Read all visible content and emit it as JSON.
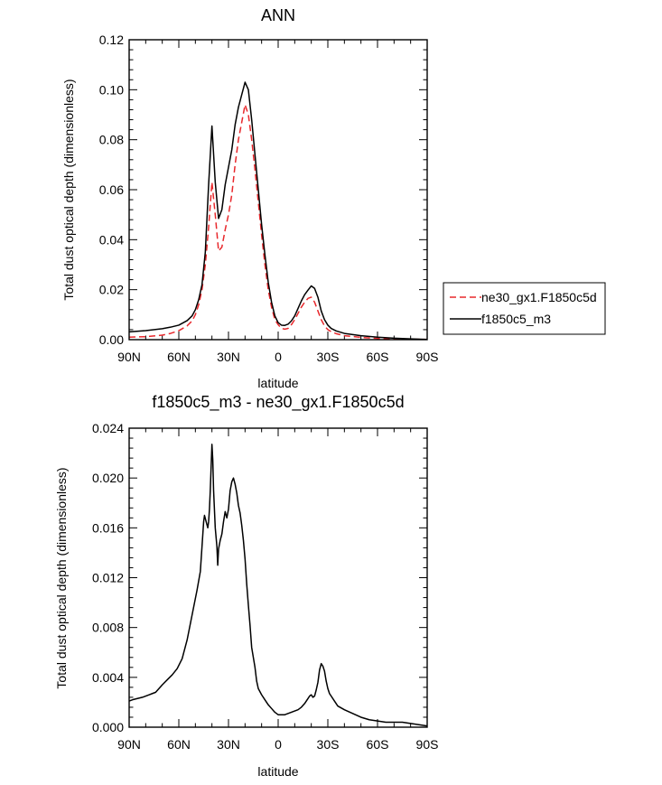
{
  "chart_data": [
    {
      "type": "line",
      "title": "ANN",
      "xlabel": "latitude",
      "ylabel": "Total dust optical depth (dimensionless)",
      "xlim": [
        90,
        -90
      ],
      "ylim": [
        0,
        0.12
      ],
      "x_ticks": [
        90,
        60,
        30,
        0,
        -30,
        -60,
        -90
      ],
      "x_tick_labels": [
        "90N",
        "60N",
        "30N",
        "0",
        "30S",
        "60S",
        "90S"
      ],
      "y_ticks": [
        0,
        0.02,
        0.04,
        0.06,
        0.08,
        0.1,
        0.12
      ],
      "y_tick_labels": [
        "0.00",
        "0.02",
        "0.04",
        "0.06",
        "0.08",
        "0.10",
        "0.12"
      ],
      "grid": false,
      "legend_position": "right",
      "series": [
        {
          "name": "ne30_gx1.F1850c5d",
          "color": "#e8282c",
          "dash": "dashed",
          "x": [
            90,
            80,
            70,
            65,
            60,
            55,
            52,
            50,
            48,
            46,
            44,
            42,
            40,
            38,
            36,
            34,
            32,
            30,
            28,
            26,
            24,
            22,
            20,
            18,
            16,
            14,
            12,
            10,
            8,
            6,
            4,
            2,
            0,
            -2,
            -4,
            -6,
            -8,
            -10,
            -12,
            -14,
            -16,
            -18,
            -20,
            -22,
            -24,
            -26,
            -28,
            -30,
            -32,
            -35,
            -40,
            -50,
            -60,
            -70,
            -80,
            -90
          ],
          "y": [
            0.001,
            0.0012,
            0.0018,
            0.0025,
            0.0036,
            0.0055,
            0.0075,
            0.01,
            0.014,
            0.02,
            0.03,
            0.045,
            0.063,
            0.05,
            0.0355,
            0.037,
            0.044,
            0.05,
            0.058,
            0.07,
            0.08,
            0.087,
            0.094,
            0.09,
            0.08,
            0.068,
            0.055,
            0.042,
            0.03,
            0.02,
            0.013,
            0.008,
            0.006,
            0.0045,
            0.0042,
            0.0045,
            0.006,
            0.008,
            0.0105,
            0.013,
            0.015,
            0.0165,
            0.017,
            0.015,
            0.0115,
            0.008,
            0.0055,
            0.004,
            0.0032,
            0.0024,
            0.0016,
            0.0009,
            0.0005,
            0.0003,
            0.0002,
            0.0001
          ]
        },
        {
          "name": "f1850c5_m3",
          "color": "#000000",
          "dash": "solid",
          "x": [
            90,
            80,
            70,
            65,
            60,
            55,
            52,
            50,
            48,
            46,
            44,
            42,
            40,
            38,
            36,
            34,
            32,
            30,
            28,
            26,
            24,
            22,
            20,
            18,
            16,
            14,
            12,
            10,
            8,
            6,
            4,
            2,
            0,
            -2,
            -4,
            -6,
            -8,
            -10,
            -12,
            -14,
            -16,
            -18,
            -20,
            -22,
            -24,
            -26,
            -28,
            -30,
            -32,
            -35,
            -40,
            -50,
            -60,
            -70,
            -80,
            -90
          ],
          "y": [
            0.0031,
            0.0036,
            0.0044,
            0.005,
            0.0058,
            0.0076,
            0.0095,
            0.012,
            0.016,
            0.022,
            0.035,
            0.062,
            0.0855,
            0.063,
            0.0485,
            0.052,
            0.062,
            0.069,
            0.076,
            0.086,
            0.093,
            0.098,
            0.103,
            0.1,
            0.088,
            0.074,
            0.06,
            0.046,
            0.034,
            0.023,
            0.015,
            0.0095,
            0.0068,
            0.0058,
            0.0057,
            0.0062,
            0.0075,
            0.0095,
            0.0125,
            0.0155,
            0.018,
            0.0198,
            0.0215,
            0.0205,
            0.017,
            0.0115,
            0.008,
            0.0058,
            0.0045,
            0.0035,
            0.0025,
            0.0016,
            0.001,
            0.0006,
            0.0003,
            0.0001
          ]
        }
      ]
    },
    {
      "type": "line",
      "title": "f1850c5_m3 - ne30_gx1.F1850c5d",
      "xlabel": "latitude",
      "ylabel": "Total dust optical depth (dimensionless)",
      "xlim": [
        90,
        -90
      ],
      "ylim": [
        0,
        0.024
      ],
      "x_ticks": [
        90,
        60,
        30,
        0,
        -30,
        -60,
        -90
      ],
      "x_tick_labels": [
        "90N",
        "60N",
        "30N",
        "0",
        "30S",
        "60S",
        "90S"
      ],
      "y_ticks": [
        0,
        0.004,
        0.008,
        0.012,
        0.016,
        0.02,
        0.024
      ],
      "y_tick_labels": [
        "0.000",
        "0.004",
        "0.008",
        "0.012",
        "0.016",
        "0.020",
        "0.024"
      ],
      "grid": false,
      "series": [
        {
          "name": "f1850c5_m3 - ne30_gx1.F1850c5d",
          "color": "#000000",
          "dash": "solid",
          "x": [
            90,
            88,
            85,
            82,
            80,
            78,
            76,
            74,
            72,
            70,
            67,
            64,
            61,
            58,
            55,
            52,
            49,
            47,
            46,
            45,
            44.5,
            43.5,
            42.5,
            42,
            41.5,
            41,
            40,
            39.5,
            39,
            38,
            37,
            36.5,
            36,
            35,
            34,
            33,
            32,
            31,
            30,
            29,
            28,
            27,
            26,
            25,
            24,
            23,
            22,
            21,
            20,
            19,
            18,
            17,
            16,
            14,
            13,
            12,
            10,
            8,
            6,
            4,
            2,
            0,
            -2,
            -4,
            -6,
            -8,
            -10,
            -12,
            -14,
            -16,
            -18,
            -19,
            -20,
            -21,
            -22,
            -23,
            -24,
            -25,
            -26,
            -27,
            -28,
            -29,
            -30,
            -31,
            -32,
            -34,
            -36,
            -40,
            -45,
            -50,
            -55,
            -60,
            -65,
            -70,
            -75,
            -80,
            -85,
            -90
          ],
          "y": [
            0.0021,
            0.0022,
            0.0023,
            0.0024,
            0.0025,
            0.0026,
            0.0027,
            0.0028,
            0.0031,
            0.0034,
            0.0038,
            0.0042,
            0.0047,
            0.0055,
            0.007,
            0.009,
            0.011,
            0.0125,
            0.0145,
            0.0165,
            0.017,
            0.0165,
            0.016,
            0.0165,
            0.0175,
            0.019,
            0.0227,
            0.0215,
            0.019,
            0.016,
            0.0145,
            0.013,
            0.0143,
            0.015,
            0.0155,
            0.0165,
            0.0173,
            0.0168,
            0.0175,
            0.019,
            0.0197,
            0.02,
            0.0195,
            0.0188,
            0.0178,
            0.0172,
            0.0162,
            0.015,
            0.0135,
            0.0115,
            0.0098,
            0.0082,
            0.0064,
            0.0048,
            0.0037,
            0.0031,
            0.0026,
            0.0022,
            0.0018,
            0.0015,
            0.0012,
            0.001,
            0.001,
            0.001,
            0.0011,
            0.0012,
            0.0013,
            0.0014,
            0.0016,
            0.0019,
            0.0023,
            0.0025,
            0.0026,
            0.0024,
            0.0025,
            0.003,
            0.0036,
            0.0046,
            0.0051,
            0.0049,
            0.0045,
            0.0037,
            0.0031,
            0.0027,
            0.0025,
            0.0021,
            0.0017,
            0.0014,
            0.0011,
            0.0008,
            0.0006,
            0.0005,
            0.0004,
            0.0004,
            0.0004,
            0.0003,
            0.0002,
            0.0001
          ]
        }
      ]
    }
  ]
}
